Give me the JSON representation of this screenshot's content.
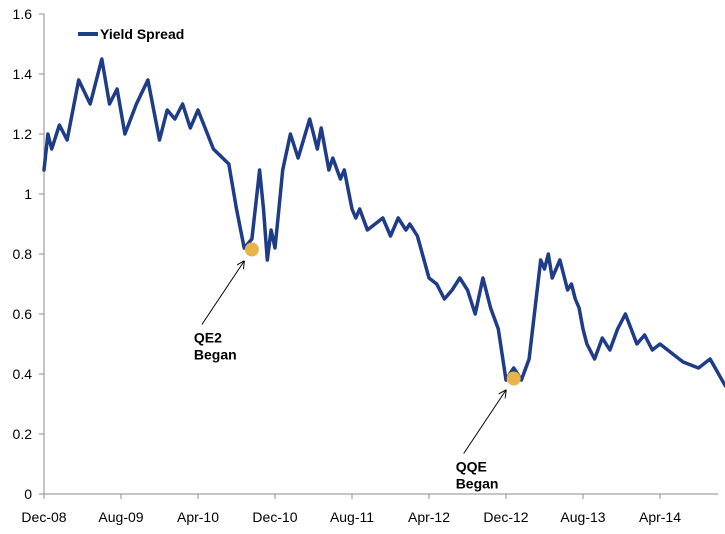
{
  "chart_data": {
    "type": "line",
    "title": "",
    "xlabel": "",
    "ylabel": "",
    "ylim": [
      0,
      1.6
    ],
    "yticks": [
      "0",
      "0.2",
      "0.4",
      "0.6",
      "0.8",
      "1",
      "1.2",
      "1.4",
      "1.6"
    ],
    "xticks": [
      "Dec-08",
      "Aug-09",
      "Apr-10",
      "Dec-10",
      "Aug-11",
      "Apr-12",
      "Dec-12",
      "Aug-13",
      "Apr-14"
    ],
    "grid": false,
    "legend": {
      "position": "top-left",
      "entries": [
        "Yield Spread"
      ]
    },
    "colors": {
      "series": "#1f3c88",
      "marker": "#e8b449",
      "axis": "#8c8c8c"
    },
    "series": [
      {
        "name": "Yield Spread",
        "x": [
          0,
          0.05,
          0.1,
          0.2,
          0.3,
          0.45,
          0.6,
          0.75,
          0.85,
          0.95,
          1.05,
          1.2,
          1.35,
          1.5,
          1.6,
          1.7,
          1.8,
          1.9,
          2.0,
          2.2,
          2.4,
          2.5,
          2.6,
          2.7,
          2.8,
          2.85,
          2.9,
          2.95,
          3.0,
          3.05,
          3.1,
          3.2,
          3.3,
          3.45,
          3.55,
          3.6,
          3.7,
          3.75,
          3.85,
          3.9,
          4.0,
          4.05,
          4.1,
          4.2,
          4.3,
          4.4,
          4.5,
          4.6,
          4.7,
          4.75,
          4.85,
          5.0,
          5.1,
          5.2,
          5.3,
          5.4,
          5.5,
          5.6,
          5.7,
          5.8,
          5.9,
          6.0,
          6.1,
          6.2,
          6.3,
          6.45,
          6.5,
          6.55,
          6.6,
          6.7,
          6.8,
          6.85,
          6.9,
          6.95,
          7.0,
          7.05,
          7.15,
          7.25,
          7.35,
          7.45,
          7.55,
          7.7,
          7.8,
          7.9,
          8.0,
          8.1,
          8.2,
          8.3,
          8.5,
          8.65,
          8.85
        ],
        "values": [
          1.08,
          1.2,
          1.15,
          1.23,
          1.18,
          1.38,
          1.3,
          1.45,
          1.3,
          1.35,
          1.2,
          1.3,
          1.38,
          1.18,
          1.28,
          1.25,
          1.3,
          1.22,
          1.28,
          1.15,
          1.1,
          0.95,
          0.82,
          0.85,
          1.08,
          0.95,
          0.78,
          0.88,
          0.82,
          0.95,
          1.08,
          1.2,
          1.12,
          1.25,
          1.15,
          1.22,
          1.08,
          1.12,
          1.05,
          1.08,
          0.95,
          0.92,
          0.95,
          0.88,
          0.9,
          0.92,
          0.86,
          0.92,
          0.88,
          0.9,
          0.86,
          0.72,
          0.7,
          0.65,
          0.68,
          0.72,
          0.68,
          0.6,
          0.72,
          0.62,
          0.55,
          0.38,
          0.42,
          0.38,
          0.45,
          0.78,
          0.75,
          0.8,
          0.72,
          0.78,
          0.68,
          0.7,
          0.65,
          0.62,
          0.55,
          0.5,
          0.45,
          0.52,
          0.48,
          0.55,
          0.6,
          0.5,
          0.53,
          0.48,
          0.5,
          0.48,
          0.46,
          0.44,
          0.42,
          0.45,
          0.36
        ]
      }
    ],
    "annotations": [
      {
        "label_line1": "QE2",
        "label_line2": "Began",
        "x": 2.7,
        "y": 0.815
      },
      {
        "label_line1": "QQE",
        "label_line2": "Began",
        "x": 6.1,
        "y": 0.385
      }
    ]
  }
}
